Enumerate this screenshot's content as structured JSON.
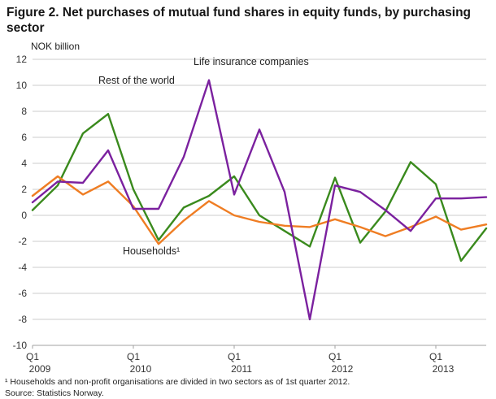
{
  "title": "Figure 2. Net purchases of mutual fund shares in equity funds, by purchasing sector",
  "chart_data": {
    "type": "line",
    "title": "Figure 2. Net purchases of mutual fund shares in equity funds, by purchasing sector",
    "ylabel": "NOK billion",
    "ylim": [
      -10,
      12
    ],
    "yticks": [
      12,
      10,
      8,
      6,
      4,
      2,
      0,
      -2,
      -4,
      -6,
      -8,
      -10
    ],
    "grid": true,
    "legend_position": "inline-annotations",
    "x": [
      "2009Q1",
      "2009Q2",
      "2009Q3",
      "2009Q4",
      "2010Q1",
      "2010Q2",
      "2010Q3",
      "2010Q4",
      "2011Q1",
      "2011Q2",
      "2011Q3",
      "2011Q4",
      "2012Q1",
      "2012Q2",
      "2012Q3",
      "2012Q4",
      "2013Q1",
      "2013Q2",
      "2013Q3"
    ],
    "xticks": [
      {
        "index": 0,
        "quarter": "Q1",
        "year": "2009"
      },
      {
        "index": 4,
        "quarter": "Q1",
        "year": "2010"
      },
      {
        "index": 8,
        "quarter": "Q1",
        "year": "2011"
      },
      {
        "index": 12,
        "quarter": "Q1",
        "year": "2012"
      },
      {
        "index": 16,
        "quarter": "Q1",
        "year": "2013"
      }
    ],
    "series": [
      {
        "id": "rest-of-the-world",
        "name": "Rest of the world",
        "label": "Rest of the world",
        "color": "#3a8a1d",
        "values": [
          0.4,
          2.3,
          6.3,
          7.8,
          2.0,
          -1.9,
          0.6,
          1.5,
          3.0,
          0.0,
          -1.2,
          -2.4,
          2.9,
          -2.1,
          0.3,
          4.1,
          2.4,
          -3.5,
          -1.0
        ]
      },
      {
        "id": "households",
        "name": "Households",
        "label": "Households¹",
        "color": "#ef7d23",
        "values": [
          1.5,
          3.0,
          1.6,
          2.6,
          0.7,
          -2.2,
          -0.4,
          1.1,
          0.0,
          -0.5,
          -0.8,
          -0.9,
          -0.3,
          -0.9,
          -1.6,
          -0.9,
          -0.1,
          -1.1,
          -0.7
        ]
      },
      {
        "id": "life-insurance-companies",
        "name": "Life insurance companies",
        "label": "Life insurance companies",
        "color": "#7b219f",
        "values": [
          1.0,
          2.6,
          2.5,
          5.0,
          0.5,
          0.5,
          4.5,
          10.4,
          1.6,
          6.6,
          1.8,
          -8.0,
          2.3,
          1.8,
          0.4,
          -1.2,
          1.3,
          1.3,
          1.4
        ]
      }
    ]
  },
  "footnotes": {
    "note1": "¹  Households and non-profit organisations are divided in two sectors as of 1st quarter 2012.",
    "source": "Source: Statistics Norway."
  }
}
